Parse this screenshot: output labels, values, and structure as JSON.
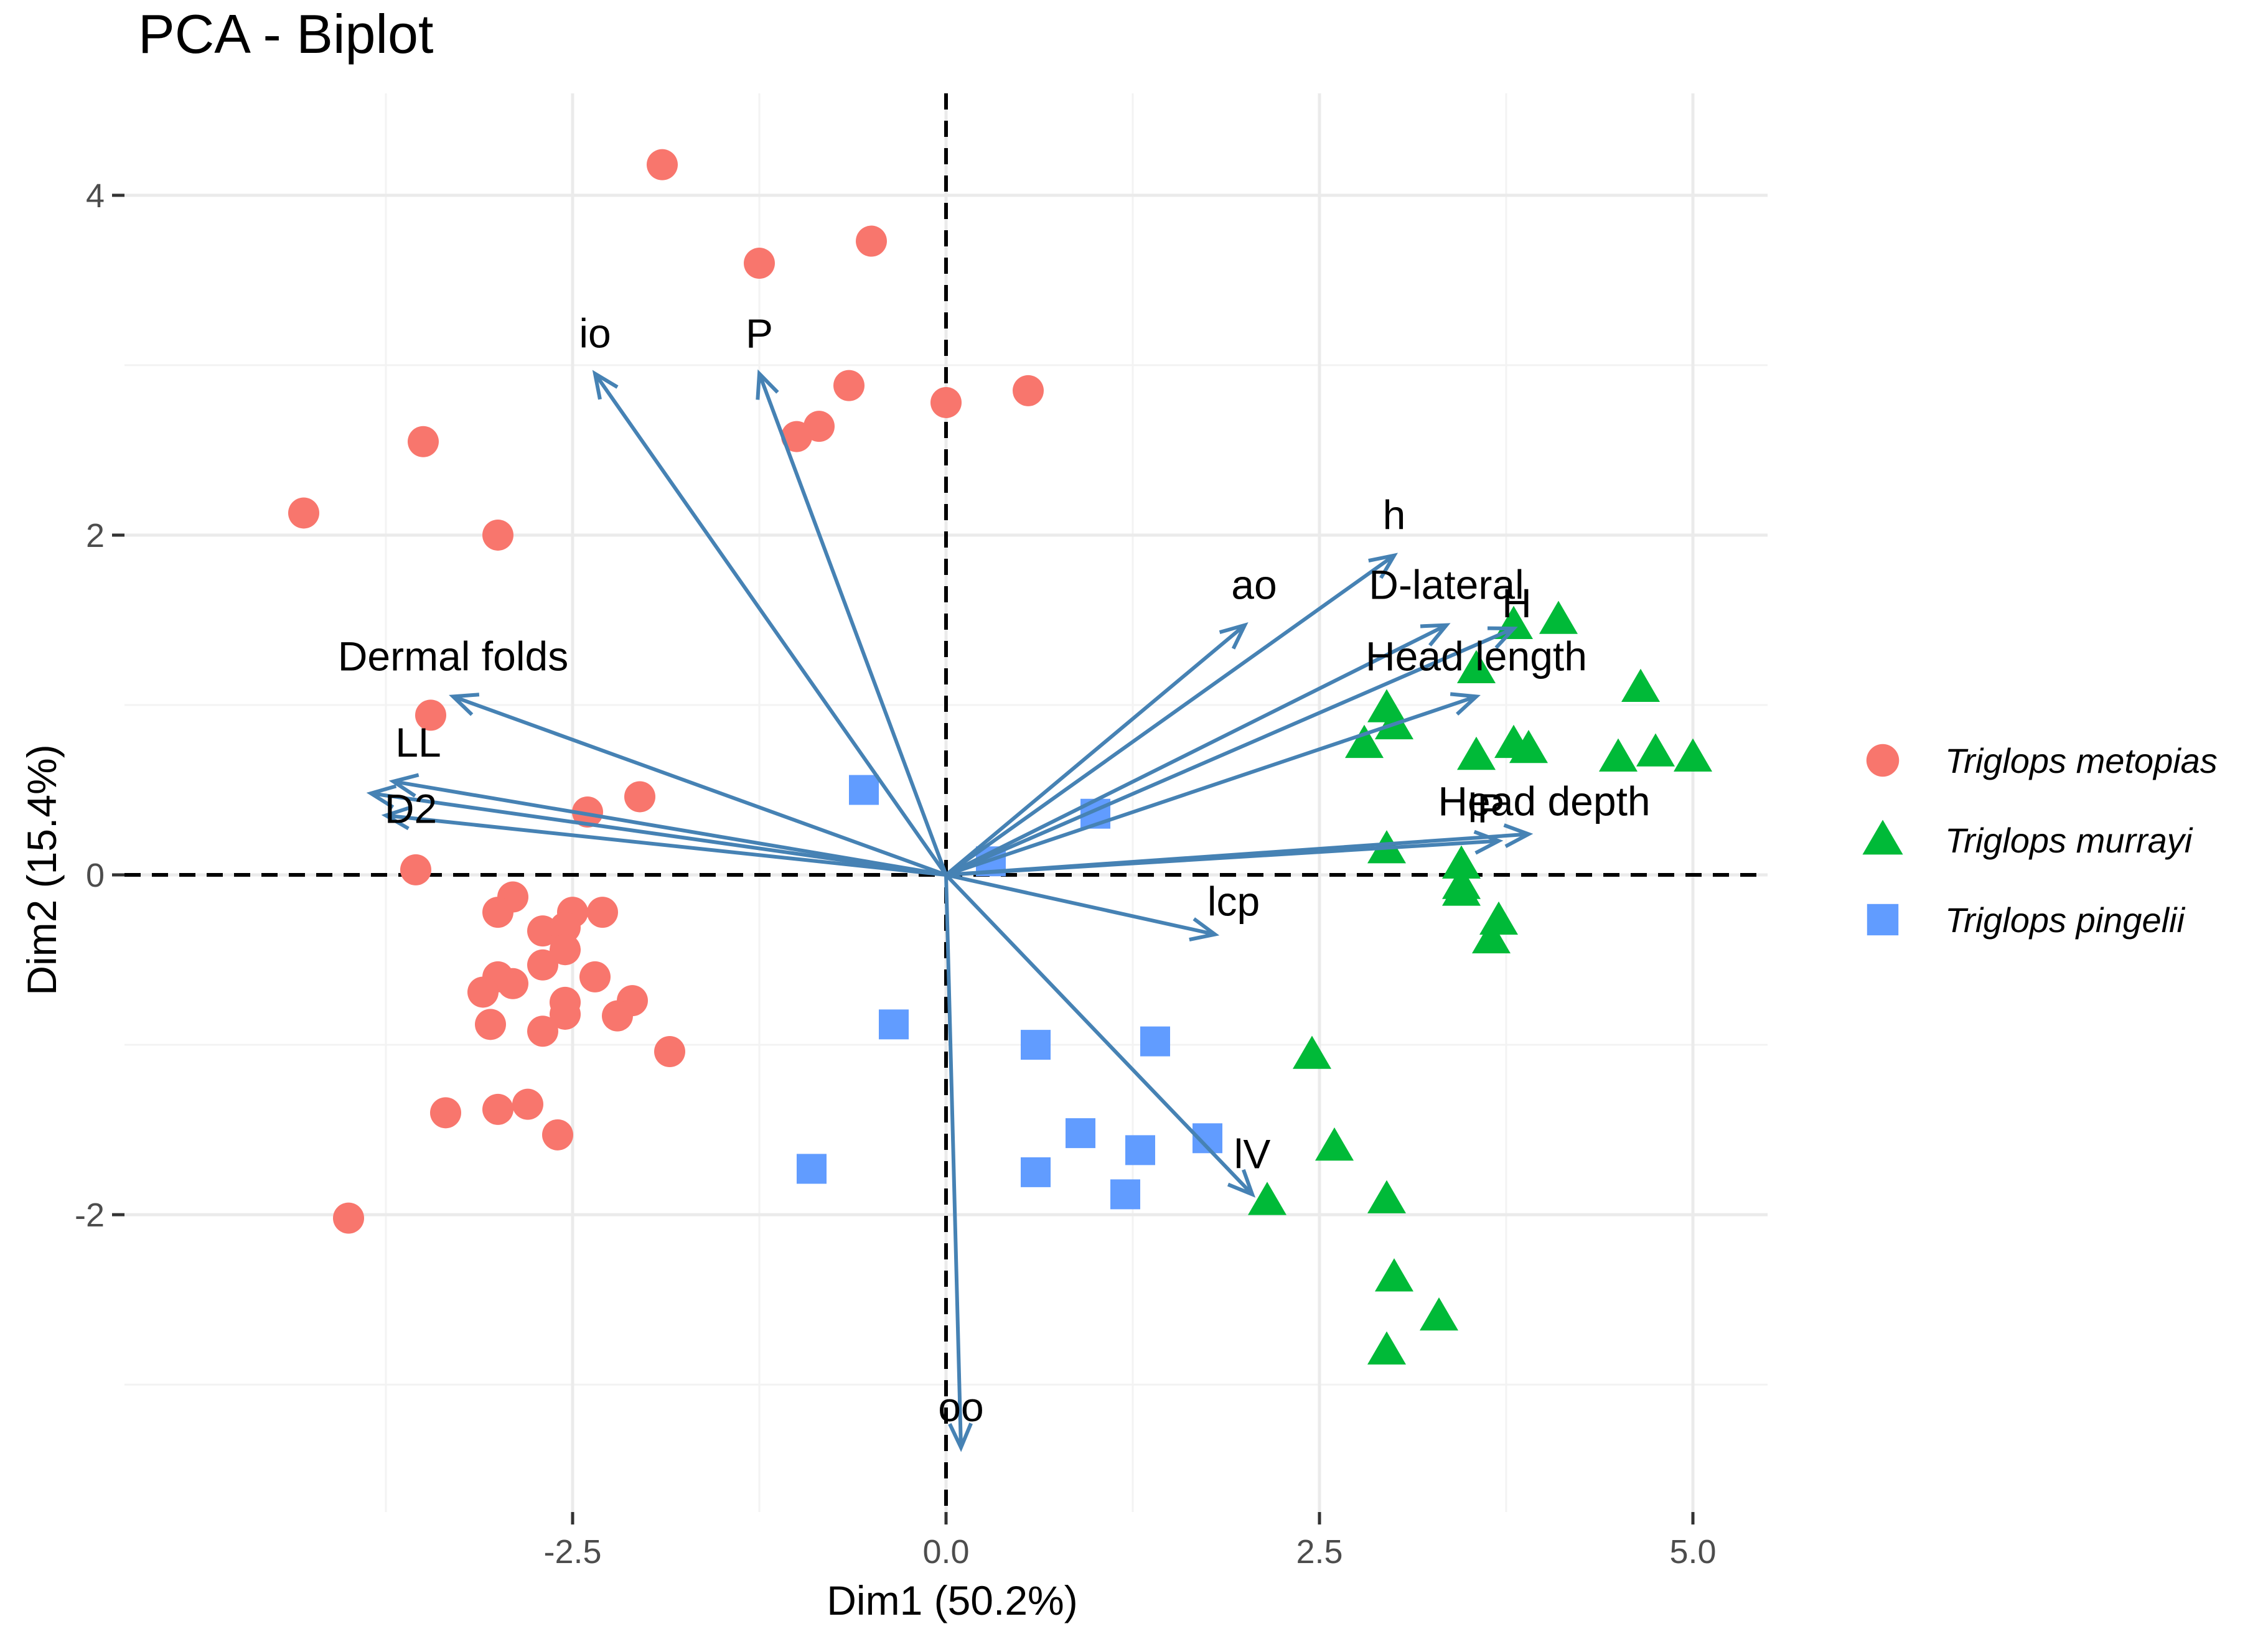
{
  "chart_data": {
    "type": "scatter",
    "title": "PCA - Biplot",
    "xlabel": "Dim1 (50.2%)",
    "ylabel": "Dim2 (15.4%)",
    "xlim": [
      -5.5,
      5.5
    ],
    "ylim": [
      -3.75,
      4.6
    ],
    "x_ticks": [
      -2.5,
      0.0,
      2.5,
      5.0
    ],
    "x_tick_labels": [
      "-2.5",
      "0.0",
      "2.5",
      "5.0"
    ],
    "y_ticks": [
      -2,
      0,
      2,
      4
    ],
    "y_tick_labels": [
      "-2",
      "0",
      "2",
      "4"
    ],
    "grid": true,
    "reference_lines": {
      "x": 0,
      "y": 0,
      "style": "dashed"
    },
    "legend": {
      "placement": "right",
      "entries": [
        {
          "name": "Triglops metopias",
          "shape": "circle",
          "color": "#F8766D"
        },
        {
          "name": "Triglops murrayi",
          "shape": "triangle",
          "color": "#00BA38"
        },
        {
          "name": "Triglops pingelii",
          "shape": "square",
          "color": "#619CFF"
        }
      ]
    },
    "series": [
      {
        "name": "Triglops metopias",
        "shape": "circle",
        "color": "#F8766D",
        "points": [
          [
            -1.9,
            4.18
          ],
          [
            -1.25,
            3.6
          ],
          [
            -0.5,
            3.73
          ],
          [
            -0.65,
            2.88
          ],
          [
            -0.85,
            2.64
          ],
          [
            -1.0,
            2.58
          ],
          [
            0.0,
            2.78
          ],
          [
            0.55,
            2.85
          ],
          [
            -3.5,
            2.55
          ],
          [
            -4.3,
            2.13
          ],
          [
            -3.0,
            2.0
          ],
          [
            -3.45,
            0.94
          ],
          [
            -2.4,
            0.37
          ],
          [
            -2.05,
            0.46
          ],
          [
            -3.55,
            0.03
          ],
          [
            -2.9,
            -0.13
          ],
          [
            -3.0,
            -0.22
          ],
          [
            -2.7,
            -0.33
          ],
          [
            -2.5,
            -0.22
          ],
          [
            -2.3,
            -0.22
          ],
          [
            -2.55,
            -0.31
          ],
          [
            -2.55,
            -0.44
          ],
          [
            -2.7,
            -0.53
          ],
          [
            -3.0,
            -0.6
          ],
          [
            -2.9,
            -0.64
          ],
          [
            -2.35,
            -0.6
          ],
          [
            -3.1,
            -0.69
          ],
          [
            -2.55,
            -0.75
          ],
          [
            -2.1,
            -0.74
          ],
          [
            -3.05,
            -0.88
          ],
          [
            -2.55,
            -0.82
          ],
          [
            -2.7,
            -0.92
          ],
          [
            -2.2,
            -0.83
          ],
          [
            -1.85,
            -1.04
          ],
          [
            -3.35,
            -1.4
          ],
          [
            -3.0,
            -1.38
          ],
          [
            -2.8,
            -1.35
          ],
          [
            -2.6,
            -1.53
          ],
          [
            -4.0,
            -2.02
          ]
        ]
      },
      {
        "name": "Triglops murrayi",
        "shape": "triangle",
        "color": "#00BA38",
        "points": [
          [
            3.8,
            1.47
          ],
          [
            4.1,
            1.5
          ],
          [
            3.55,
            1.21
          ],
          [
            4.65,
            1.1
          ],
          [
            2.95,
            0.98
          ],
          [
            3.0,
            0.88
          ],
          [
            2.8,
            0.77
          ],
          [
            3.55,
            0.7
          ],
          [
            3.8,
            0.77
          ],
          [
            3.9,
            0.74
          ],
          [
            4.5,
            0.69
          ],
          [
            4.75,
            0.72
          ],
          [
            5.0,
            0.69
          ],
          [
            2.95,
            0.15
          ],
          [
            3.45,
            0.06
          ],
          [
            3.45,
            -0.06
          ],
          [
            3.45,
            -0.1
          ],
          [
            3.7,
            -0.27
          ],
          [
            3.65,
            -0.38
          ],
          [
            2.45,
            -1.06
          ],
          [
            2.6,
            -1.6
          ],
          [
            2.15,
            -1.92
          ],
          [
            2.95,
            -1.91
          ],
          [
            3.0,
            -2.37
          ],
          [
            3.3,
            -2.6
          ],
          [
            2.95,
            -2.8
          ]
        ]
      },
      {
        "name": "Triglops pingelii",
        "shape": "square",
        "color": "#619CFF",
        "points": [
          [
            -0.55,
            0.5
          ],
          [
            1.0,
            0.36
          ],
          [
            0.3,
            0.08
          ],
          [
            -0.35,
            -0.88
          ],
          [
            0.6,
            -1.0
          ],
          [
            1.4,
            -0.98
          ],
          [
            0.9,
            -1.52
          ],
          [
            1.3,
            -1.62
          ],
          [
            1.75,
            -1.55
          ],
          [
            -0.9,
            -1.73
          ],
          [
            0.6,
            -1.75
          ],
          [
            1.2,
            -1.88
          ]
        ]
      }
    ],
    "variables": [
      {
        "name": "io",
        "x": -2.35,
        "y": 2.95
      },
      {
        "name": "P",
        "x": -1.25,
        "y": 2.95
      },
      {
        "name": "Dermal folds",
        "x": -3.3,
        "y": 1.05
      },
      {
        "name": "LL",
        "x": -3.7,
        "y": 0.55
      },
      {
        "name": "D2",
        "x": -3.75,
        "y": 0.35
      },
      {
        "name": "D2",
        "x": -3.85,
        "y": 0.48
      },
      {
        "name": "h",
        "x": 3.0,
        "y": 1.88
      },
      {
        "name": "ao",
        "x": 2.0,
        "y": 1.47
      },
      {
        "name": "D-lateral",
        "x": 3.35,
        "y": 1.47
      },
      {
        "name": "H",
        "x": 3.8,
        "y": 1.45
      },
      {
        "name": "Head length",
        "x": 3.55,
        "y": 1.05
      },
      {
        "name": "Head depth",
        "x": 3.9,
        "y": 0.24
      },
      {
        "name": "lP",
        "x": 3.7,
        "y": 0.2
      },
      {
        "name": "lcp",
        "x": 1.8,
        "y": -0.35
      },
      {
        "name": "lV",
        "x": 2.05,
        "y": -1.88
      },
      {
        "name": "oo",
        "x": 0.1,
        "y": -3.37
      }
    ]
  }
}
